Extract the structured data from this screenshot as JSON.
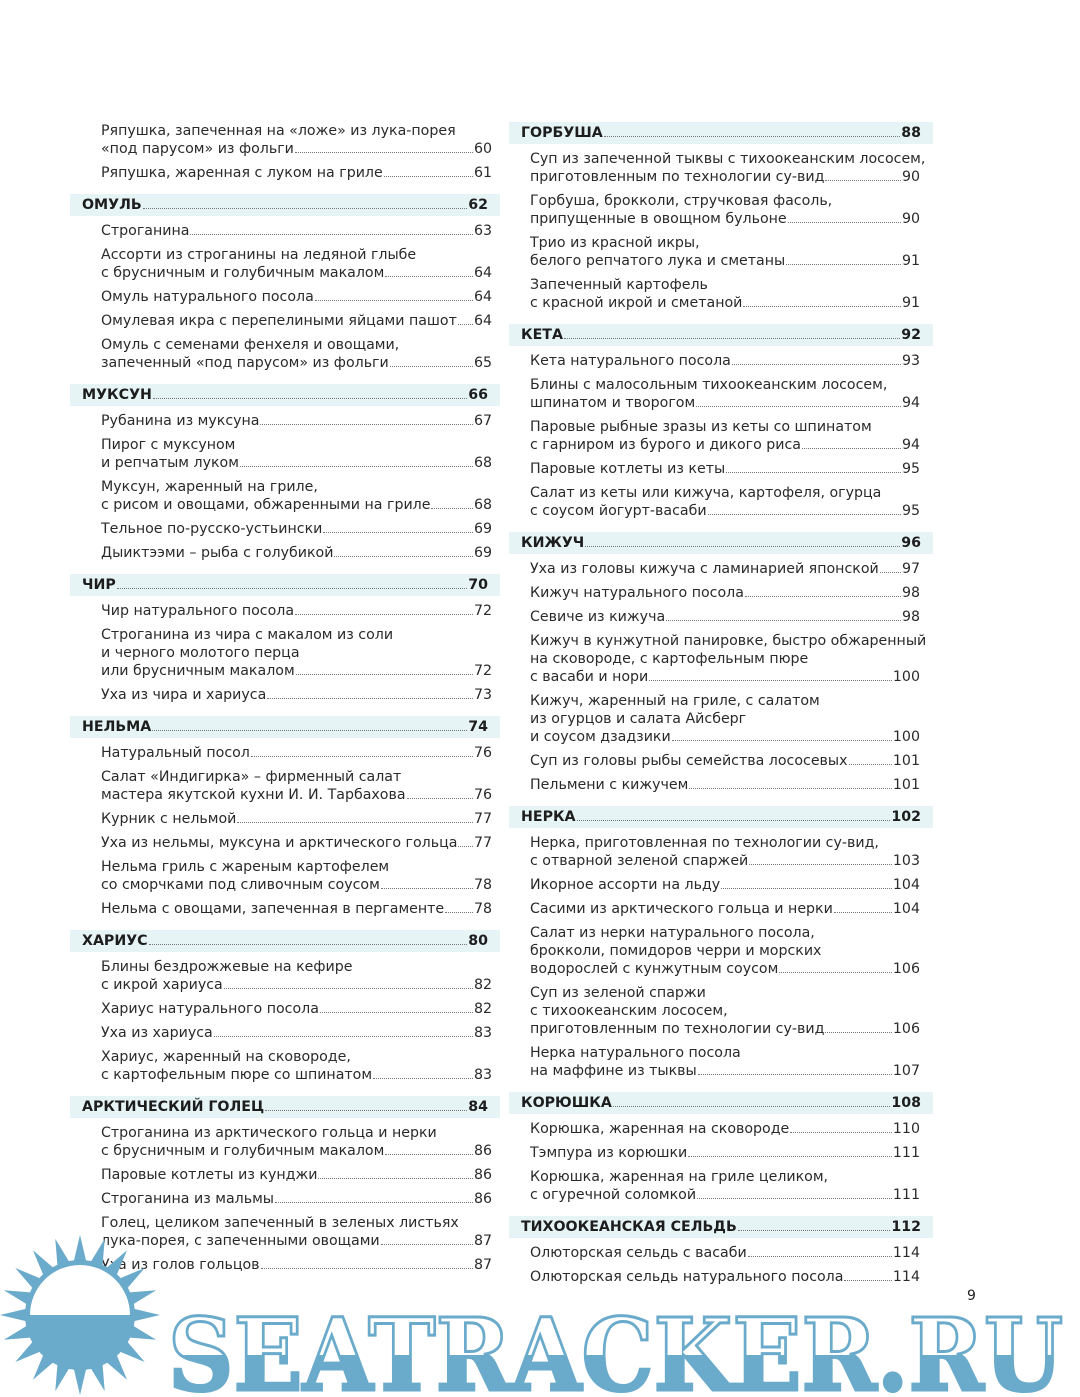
{
  "toc": {
    "left": [
      {
        "type": "entry",
        "lines": [
          "Ряпушка, запеченная на «ложе» из лука-порея",
          "«под парусом» из фольги"
        ],
        "page": "60"
      },
      {
        "type": "entry",
        "lines": [
          "Ряпушка, жаренная с луком на гриле"
        ],
        "page": "61"
      },
      {
        "type": "section",
        "title": "ОМУЛЬ",
        "page": "62"
      },
      {
        "type": "entry",
        "lines": [
          "Строганина"
        ],
        "page": "63"
      },
      {
        "type": "entry",
        "lines": [
          "Ассорти из строганины на ледяной глыбе",
          "с брусничным и голубичным макалом"
        ],
        "page": "64"
      },
      {
        "type": "entry",
        "lines": [
          "Омуль натурального посола"
        ],
        "page": "64"
      },
      {
        "type": "entry",
        "lines": [
          "Омулевая икра с перепелиными яйцами пашот"
        ],
        "page": "64"
      },
      {
        "type": "entry",
        "lines": [
          "Омуль с семенами фенхеля и овощами,",
          "запеченный «под парусом» из фольги"
        ],
        "page": "65"
      },
      {
        "type": "section",
        "title": "МУКСУН",
        "page": "66"
      },
      {
        "type": "entry",
        "lines": [
          "Рубанина из муксуна"
        ],
        "page": "67"
      },
      {
        "type": "entry",
        "lines": [
          "Пирог с муксуном",
          "и репчатым луком"
        ],
        "page": "68"
      },
      {
        "type": "entry",
        "lines": [
          "Муксун, жаренный на гриле,",
          "с рисом и овощами, обжаренными на гриле"
        ],
        "page": "68"
      },
      {
        "type": "entry",
        "lines": [
          "Тельное по-русско-устьински"
        ],
        "page": "69"
      },
      {
        "type": "entry",
        "lines": [
          "Дыиктээми – рыба с голубикой"
        ],
        "page": "69"
      },
      {
        "type": "section",
        "title": "ЧИР",
        "page": "70"
      },
      {
        "type": "entry",
        "lines": [
          "Чир натурального посола"
        ],
        "page": "72"
      },
      {
        "type": "entry",
        "lines": [
          "Строганина из чира с макалом из соли",
          "и черного молотого перца",
          "или брусничным макалом"
        ],
        "page": "72"
      },
      {
        "type": "entry",
        "lines": [
          "Уха из чира и хариуса"
        ],
        "page": "73"
      },
      {
        "type": "section",
        "title": "НЕЛЬМА",
        "page": "74"
      },
      {
        "type": "entry",
        "lines": [
          "Натуральный посол"
        ],
        "page": "76"
      },
      {
        "type": "entry",
        "lines": [
          "Салат «Индигирка» – фирменный салат",
          "мастера якутской кухни И. И. Тарбахова"
        ],
        "page": "76"
      },
      {
        "type": "entry",
        "lines": [
          "Курник с нельмой"
        ],
        "page": "77"
      },
      {
        "type": "entry",
        "lines": [
          "Уха из нельмы, муксуна и арктического гольца"
        ],
        "page": "77"
      },
      {
        "type": "entry",
        "lines": [
          "Нельма гриль с жареным картофелем",
          "со сморчками под сливочным соусом"
        ],
        "page": "78"
      },
      {
        "type": "entry",
        "lines": [
          "Нельма с овощами, запеченная в пергаменте"
        ],
        "page": "78"
      },
      {
        "type": "section",
        "title": "ХАРИУС",
        "page": "80"
      },
      {
        "type": "entry",
        "lines": [
          "Блины бездрожжевые на кефире",
          "с икрой хариуса"
        ],
        "page": "82"
      },
      {
        "type": "entry",
        "lines": [
          "Хариус натурального посола"
        ],
        "page": "82"
      },
      {
        "type": "entry",
        "lines": [
          "Уха из хариуса"
        ],
        "page": "83"
      },
      {
        "type": "entry",
        "lines": [
          "Хариус, жаренный на сковороде,",
          "с картофельным пюре со шпинатом"
        ],
        "page": "83"
      },
      {
        "type": "section",
        "title": "АРКТИЧЕСКИЙ ГОЛЕЦ",
        "page": "84"
      },
      {
        "type": "entry",
        "lines": [
          "Строганина из арктического гольца и нерки",
          "с брусничным и голубичным макалом"
        ],
        "page": "86"
      },
      {
        "type": "entry",
        "lines": [
          "Паровые котлеты из кунджи"
        ],
        "page": "86"
      },
      {
        "type": "entry",
        "lines": [
          "Строганина из мальмы"
        ],
        "page": "86"
      },
      {
        "type": "entry",
        "lines": [
          "Голец, целиком запеченный в зеленых листьях",
          "лука-порея, с запеченными овощами"
        ],
        "page": "87"
      },
      {
        "type": "entry",
        "lines": [
          "Уха из голов гольцов"
        ],
        "page": "87"
      }
    ],
    "right": [
      {
        "type": "section",
        "title": "ГОРБУША",
        "page": "88"
      },
      {
        "type": "entry",
        "lines": [
          "Суп из запеченной тыквы с тихоокеанским лососем,",
          "приготовленным по технологии су-вид"
        ],
        "page": "90"
      },
      {
        "type": "entry",
        "lines": [
          "Горбуша, брокколи, стручковая фасоль,",
          "припущенные в овощном бульоне"
        ],
        "page": "90"
      },
      {
        "type": "entry",
        "lines": [
          "Трио из красной икры,",
          "белого репчатого лука и сметаны"
        ],
        "page": "91"
      },
      {
        "type": "entry",
        "lines": [
          "Запеченный картофель",
          "с красной икрой и сметаной"
        ],
        "page": "91"
      },
      {
        "type": "section",
        "title": "КЕТА",
        "page": "92"
      },
      {
        "type": "entry",
        "lines": [
          "Кета натурального посола"
        ],
        "page": "93"
      },
      {
        "type": "entry",
        "lines": [
          "Блины с малосольным тихоокеанским лососем,",
          "шпинатом и творогом"
        ],
        "page": "94"
      },
      {
        "type": "entry",
        "lines": [
          "Паровые рыбные зразы из кеты со шпинатом",
          "с гарниром из бурого и дикого риса"
        ],
        "page": "94"
      },
      {
        "type": "entry",
        "lines": [
          "Паровые котлеты из кеты"
        ],
        "page": "95"
      },
      {
        "type": "entry",
        "lines": [
          "Салат из кеты или кижуча, картофеля, огурца",
          "с соусом йогурт-васаби"
        ],
        "page": "95"
      },
      {
        "type": "section",
        "title": "КИЖУЧ",
        "page": "96"
      },
      {
        "type": "entry",
        "lines": [
          "Уха из головы кижуча с ламинарией японской"
        ],
        "page": "97"
      },
      {
        "type": "entry",
        "lines": [
          "Кижуч натурального посола"
        ],
        "page": "98"
      },
      {
        "type": "entry",
        "lines": [
          "Севиче из кижуча"
        ],
        "page": "98"
      },
      {
        "type": "entry",
        "lines": [
          "Кижуч в кунжутной панировке, быстро обжаренный",
          "на сковороде, с картофельным пюре",
          "с васаби и нори"
        ],
        "page": "100"
      },
      {
        "type": "entry",
        "lines": [
          "Кижуч, жаренный на гриле, с салатом",
          "из огурцов и салата Айсберг",
          "и соусом дзадзики"
        ],
        "page": "100"
      },
      {
        "type": "entry",
        "lines": [
          "Суп из головы рыбы семейства лососевых"
        ],
        "page": "101"
      },
      {
        "type": "entry",
        "lines": [
          "Пельмени с кижучем"
        ],
        "page": "101"
      },
      {
        "type": "section",
        "title": "НЕРКА",
        "page": "102"
      },
      {
        "type": "entry",
        "lines": [
          "Нерка, приготовленная по технологии су-вид,",
          "с отварной зеленой спаржей"
        ],
        "page": "103"
      },
      {
        "type": "entry",
        "lines": [
          "Икорное ассорти на льду"
        ],
        "page": "104"
      },
      {
        "type": "entry",
        "lines": [
          "Сасими из арктического гольца и нерки"
        ],
        "page": "104"
      },
      {
        "type": "entry",
        "lines": [
          "Салат из нерки натурального посола,",
          "брокколи, помидоров черри и морских",
          "водорослей с кунжутным соусом"
        ],
        "page": "106"
      },
      {
        "type": "entry",
        "lines": [
          "Суп из зеленой спаржи",
          "с тихоокеанским лососем,",
          "приготовленным по технологии су-вид"
        ],
        "page": "106"
      },
      {
        "type": "entry",
        "lines": [
          "Нерка натурального посола",
          "на маффине из тыквы"
        ],
        "page": "107"
      },
      {
        "type": "section",
        "title": "КОРЮШКА",
        "page": "108"
      },
      {
        "type": "entry",
        "lines": [
          "Корюшка, жаренная на сковороде"
        ],
        "page": "110"
      },
      {
        "type": "entry",
        "lines": [
          "Тэмпура из корюшки"
        ],
        "page": "111"
      },
      {
        "type": "entry",
        "lines": [
          "Корюшка, жаренная на гриле целиком,",
          "с огуречной соломкой"
        ],
        "page": "111"
      },
      {
        "type": "section",
        "title": "ТИХООКЕАНСКАЯ СЕЛЬДЬ",
        "page": "112"
      },
      {
        "type": "entry",
        "lines": [
          "Олюторская сельдь с васаби"
        ],
        "page": "114"
      },
      {
        "type": "entry",
        "lines": [
          "Олюторская сельдь натурального посола"
        ],
        "page": "114"
      }
    ]
  },
  "page_number": "9",
  "watermark": {
    "text": "SEATRACKER.RU",
    "icon": "sun-icon",
    "color": "#6aaacb"
  },
  "colors": {
    "section_band": "#e6f4f6"
  }
}
